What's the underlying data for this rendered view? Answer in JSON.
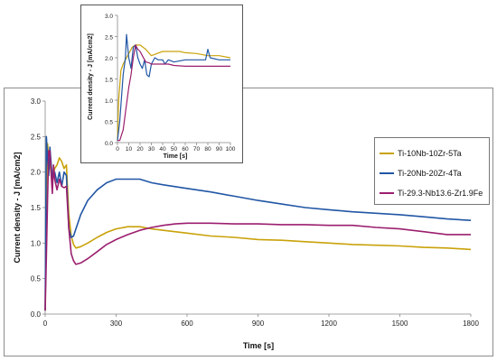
{
  "chart_data": [
    {
      "type": "line",
      "xlabel": "Time [s]",
      "ylabel": "Current density - J [mA/cm2]",
      "xlim": [
        0,
        1800
      ],
      "ylim": [
        0,
        3.0
      ],
      "xticks": [
        "0",
        "300",
        "600",
        "900",
        "1200",
        "1500",
        "1800"
      ],
      "yticks": [
        "0.0",
        "0.5",
        "1.0",
        "1.5",
        "2.0",
        "2.5",
        "3.0"
      ],
      "grid": false,
      "legend_position": "right",
      "series": [
        {
          "name": "Ti-10Nb-10Zr-5Ta",
          "color": "#c9a20a",
          "points": [
            [
              0,
              0.05
            ],
            [
              5,
              1.6
            ],
            [
              10,
              2.4
            ],
            [
              15,
              2.2
            ],
            [
              20,
              2.1
            ],
            [
              30,
              1.9
            ],
            [
              40,
              2.05
            ],
            [
              50,
              2.1
            ],
            [
              60,
              2.2
            ],
            [
              70,
              2.15
            ],
            [
              80,
              2.05
            ],
            [
              90,
              2.1
            ],
            [
              100,
              1.4
            ],
            [
              110,
              1.1
            ],
            [
              120,
              0.98
            ],
            [
              130,
              0.93
            ],
            [
              150,
              0.95
            ],
            [
              180,
              1.0
            ],
            [
              220,
              1.08
            ],
            [
              260,
              1.15
            ],
            [
              300,
              1.2
            ],
            [
              350,
              1.23
            ],
            [
              400,
              1.23
            ],
            [
              450,
              1.2
            ],
            [
              500,
              1.18
            ],
            [
              600,
              1.14
            ],
            [
              700,
              1.1
            ],
            [
              800,
              1.08
            ],
            [
              900,
              1.05
            ],
            [
              1000,
              1.04
            ],
            [
              1100,
              1.02
            ],
            [
              1200,
              1.0
            ],
            [
              1300,
              0.98
            ],
            [
              1400,
              0.97
            ],
            [
              1500,
              0.96
            ],
            [
              1600,
              0.94
            ],
            [
              1700,
              0.93
            ],
            [
              1800,
              0.91
            ]
          ]
        },
        {
          "name": "Ti-20Nb-20Zr-4Ta",
          "color": "#2156a5",
          "points": [
            [
              0,
              0.05
            ],
            [
              5,
              2.5
            ],
            [
              10,
              2.2
            ],
            [
              15,
              1.95
            ],
            [
              20,
              2.35
            ],
            [
              30,
              1.9
            ],
            [
              40,
              2.0
            ],
            [
              50,
              1.85
            ],
            [
              60,
              2.0
            ],
            [
              70,
              1.8
            ],
            [
              80,
              2.0
            ],
            [
              90,
              1.95
            ],
            [
              100,
              1.2
            ],
            [
              110,
              1.08
            ],
            [
              120,
              1.1
            ],
            [
              130,
              1.2
            ],
            [
              150,
              1.4
            ],
            [
              180,
              1.6
            ],
            [
              220,
              1.75
            ],
            [
              260,
              1.85
            ],
            [
              300,
              1.9
            ],
            [
              350,
              1.9
            ],
            [
              400,
              1.9
            ],
            [
              450,
              1.85
            ],
            [
              500,
              1.82
            ],
            [
              600,
              1.77
            ],
            [
              700,
              1.72
            ],
            [
              800,
              1.66
            ],
            [
              900,
              1.6
            ],
            [
              1000,
              1.55
            ],
            [
              1100,
              1.5
            ],
            [
              1200,
              1.47
            ],
            [
              1300,
              1.44
            ],
            [
              1400,
              1.42
            ],
            [
              1500,
              1.4
            ],
            [
              1600,
              1.37
            ],
            [
              1700,
              1.34
            ],
            [
              1800,
              1.32
            ]
          ]
        },
        {
          "name": "Ti-29.3-Nb13.6-Zr1.9Fe",
          "color": "#9b1e6e",
          "points": [
            [
              0,
              0.05
            ],
            [
              5,
              0.8
            ],
            [
              10,
              1.6
            ],
            [
              15,
              2.3
            ],
            [
              20,
              2.3
            ],
            [
              25,
              2.0
            ],
            [
              30,
              1.7
            ],
            [
              35,
              2.1
            ],
            [
              40,
              1.9
            ],
            [
              50,
              1.75
            ],
            [
              60,
              1.9
            ],
            [
              70,
              1.8
            ],
            [
              80,
              1.78
            ],
            [
              90,
              1.8
            ],
            [
              100,
              1.2
            ],
            [
              110,
              0.85
            ],
            [
              120,
              0.75
            ],
            [
              130,
              0.7
            ],
            [
              150,
              0.72
            ],
            [
              180,
              0.78
            ],
            [
              220,
              0.88
            ],
            [
              260,
              0.98
            ],
            [
              300,
              1.05
            ],
            [
              350,
              1.12
            ],
            [
              400,
              1.18
            ],
            [
              450,
              1.22
            ],
            [
              500,
              1.25
            ],
            [
              550,
              1.27
            ],
            [
              600,
              1.28
            ],
            [
              700,
              1.28
            ],
            [
              800,
              1.27
            ],
            [
              900,
              1.27
            ],
            [
              1000,
              1.26
            ],
            [
              1100,
              1.26
            ],
            [
              1200,
              1.25
            ],
            [
              1300,
              1.25
            ],
            [
              1400,
              1.22
            ],
            [
              1500,
              1.2
            ],
            [
              1600,
              1.16
            ],
            [
              1700,
              1.12
            ],
            [
              1800,
              1.12
            ]
          ]
        }
      ]
    },
    {
      "type": "line",
      "xlabel": "Time [s]",
      "ylabel": "Current density - J [mA/cm2]",
      "xlim": [
        0,
        100
      ],
      "ylim": [
        0,
        3.0
      ],
      "xticks": [
        "0",
        "10",
        "20",
        "30",
        "40",
        "50",
        "60",
        "70",
        "80",
        "90",
        "100"
      ],
      "yticks": [
        "0.0",
        "0.5",
        "1.0",
        "1.5",
        "2.0",
        "2.5",
        "3.0"
      ],
      "grid": false,
      "series": [
        {
          "name": "Ti-10Nb-10Zr-5Ta",
          "color": "#c9a20a",
          "points": [
            [
              0,
              0.05
            ],
            [
              1,
              1.0
            ],
            [
              3,
              1.7
            ],
            [
              5,
              1.85
            ],
            [
              8,
              2.0
            ],
            [
              10,
              2.1
            ],
            [
              13,
              2.25
            ],
            [
              16,
              2.3
            ],
            [
              20,
              2.3
            ],
            [
              25,
              2.2
            ],
            [
              30,
              2.05
            ],
            [
              35,
              2.1
            ],
            [
              40,
              2.15
            ],
            [
              45,
              2.15
            ],
            [
              50,
              2.15
            ],
            [
              55,
              2.15
            ],
            [
              60,
              2.12
            ],
            [
              70,
              2.1
            ],
            [
              80,
              2.05
            ],
            [
              90,
              2.05
            ],
            [
              100,
              2.0
            ]
          ]
        },
        {
          "name": "Ti-20Nb-20Zr-4Ta",
          "color": "#2156a5",
          "points": [
            [
              0,
              0.05
            ],
            [
              2,
              0.5
            ],
            [
              5,
              1.6
            ],
            [
              7,
              2.0
            ],
            [
              8,
              2.55
            ],
            [
              10,
              2.0
            ],
            [
              12,
              1.75
            ],
            [
              14,
              2.25
            ],
            [
              16,
              2.3
            ],
            [
              18,
              2.0
            ],
            [
              20,
              1.85
            ],
            [
              22,
              1.75
            ],
            [
              24,
              1.95
            ],
            [
              26,
              1.6
            ],
            [
              28,
              1.55
            ],
            [
              30,
              1.85
            ],
            [
              33,
              2.0
            ],
            [
              36,
              1.95
            ],
            [
              40,
              1.95
            ],
            [
              42,
              1.85
            ],
            [
              45,
              1.95
            ],
            [
              50,
              1.9
            ],
            [
              60,
              1.95
            ],
            [
              70,
              1.95
            ],
            [
              78,
              1.95
            ],
            [
              80,
              2.2
            ],
            [
              82,
              2.0
            ],
            [
              90,
              1.95
            ],
            [
              100,
              1.95
            ]
          ]
        },
        {
          "name": "Ti-29.3-Nb13.6-Zr1.9Fe",
          "color": "#9b1e6e",
          "points": [
            [
              0,
              0.05
            ],
            [
              2,
              0.05
            ],
            [
              5,
              0.3
            ],
            [
              8,
              0.9
            ],
            [
              10,
              1.3
            ],
            [
              12,
              1.6
            ],
            [
              14,
              2.0
            ],
            [
              16,
              2.3
            ],
            [
              18,
              2.2
            ],
            [
              20,
              2.15
            ],
            [
              22,
              2.05
            ],
            [
              25,
              1.9
            ],
            [
              28,
              1.88
            ],
            [
              30,
              1.85
            ],
            [
              35,
              1.85
            ],
            [
              40,
              1.85
            ],
            [
              45,
              1.85
            ],
            [
              50,
              1.82
            ],
            [
              60,
              1.8
            ],
            [
              70,
              1.8
            ],
            [
              80,
              1.8
            ],
            [
              90,
              1.8
            ],
            [
              100,
              1.8
            ]
          ]
        }
      ]
    }
  ]
}
